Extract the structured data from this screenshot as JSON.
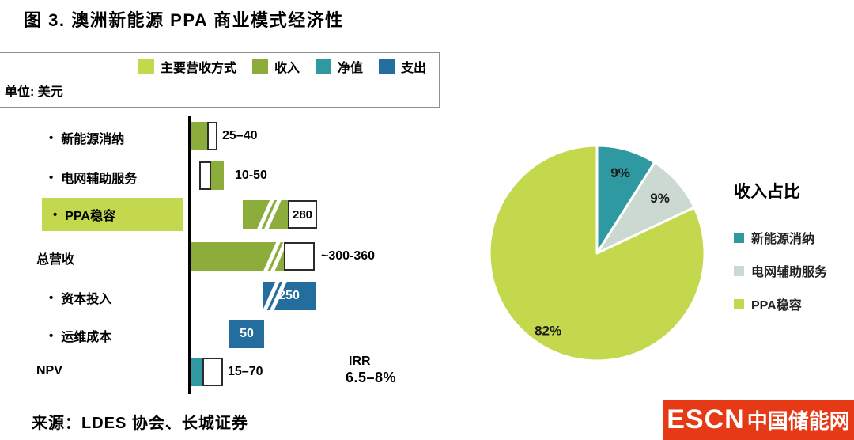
{
  "title": "图 3. 澳洲新能源 PPA 商业模式经济性",
  "unit_label": "单位: 美元",
  "legend": {
    "items": [
      {
        "label": "主要营收方式",
        "color": "#c3d84d"
      },
      {
        "label": "收入",
        "color": "#8cad3c"
      },
      {
        "label": "净值",
        "color": "#2e99a1"
      },
      {
        "label": "支出",
        "color": "#246d9f"
      }
    ]
  },
  "chart_data": [
    {
      "type": "bar",
      "subtype": "waterfall",
      "orientation": "horizontal",
      "title": "澳洲新能源 PPA 商业模式经济性",
      "unit": "美元",
      "categories": [
        "新能源消纳",
        "电网辅助服务",
        "PPA稳容",
        "总营收",
        "资本投入",
        "运维成本",
        "NPV"
      ],
      "rows": [
        {
          "label": "新能源消纳",
          "series": "收入",
          "value_label": "25–40",
          "range": [
            25,
            40
          ]
        },
        {
          "label": "电网辅助服务",
          "series": "收入",
          "value_label": "10-50",
          "range": [
            10,
            50
          ]
        },
        {
          "label": "PPA稳容",
          "series": "收入",
          "tag": "主要营收方式",
          "value_label": "280",
          "value": 280,
          "axis_break": true
        },
        {
          "label": "总营收",
          "series": "收入",
          "value_label": "~300-360",
          "range": [
            300,
            360
          ],
          "axis_break": true
        },
        {
          "label": "资本投入",
          "series": "支出",
          "value_label": "250",
          "value": 250,
          "axis_break": true
        },
        {
          "label": "运维成本",
          "series": "支出",
          "value_label": "50",
          "value": 50
        },
        {
          "label": "NPV",
          "series": "净值",
          "value_label": "15–70",
          "range": [
            15,
            70
          ]
        }
      ],
      "annotation": {
        "label": "IRR",
        "value": "6.5–8%"
      }
    },
    {
      "type": "pie",
      "title": "收入占比",
      "legend_position": "right",
      "slices": [
        {
          "label": "新能源消纳",
          "value": 9,
          "display": "9%",
          "color": "#2e99a1"
        },
        {
          "label": "电网辅助服务",
          "value": 9,
          "display": "9%",
          "color": "#ccd9d1"
        },
        {
          "label": "PPA稳容",
          "value": 82,
          "display": "82%",
          "color": "#c3d84d"
        }
      ]
    }
  ],
  "source": "来源：LDES 协会、长城证券",
  "logo": {
    "text_en": "ESCN",
    "text_cn": "中国储能网",
    "bg_color": "#e63a17"
  }
}
